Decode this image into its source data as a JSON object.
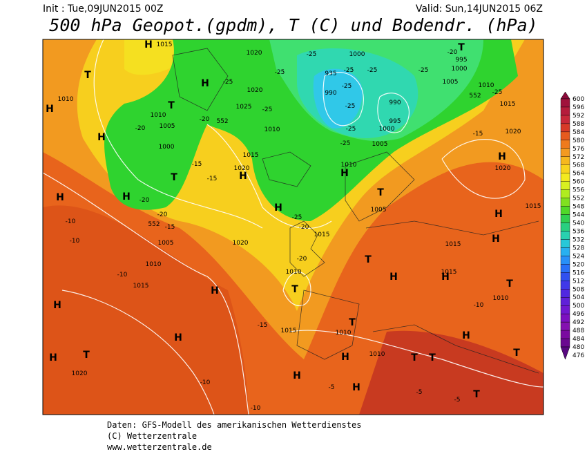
{
  "header": {
    "init": "Init : Tue,09JUN2015 00Z",
    "valid": "Valid: Sun,14JUN2015 06Z",
    "title": "500 hPa Geopot.(gpdm), T (C) und Bodendr. (hPa)"
  },
  "footer": {
    "line1": "Daten: GFS-Modell des amerikanischen Wetterdienstes",
    "line2": "(C) Wetterzentrale",
    "line3": "www.wetterzentrale.de"
  },
  "colorbar": {
    "labels": [
      600,
      596,
      592,
      588,
      584,
      580,
      576,
      572,
      568,
      564,
      560,
      556,
      552,
      548,
      544,
      540,
      536,
      532,
      528,
      524,
      520,
      516,
      512,
      508,
      504,
      500,
      496,
      492,
      488,
      484,
      480,
      476
    ]
  },
  "map": {
    "labels": [
      "H",
      "H",
      "H",
      "H",
      "H",
      "H",
      "H",
      "H",
      "H",
      "H",
      "H",
      "H",
      "H",
      "H",
      "H",
      "H",
      "H",
      "H",
      "H",
      "H",
      "H",
      "H",
      "T",
      "T",
      "T",
      "T",
      "T",
      "T",
      "T",
      "T",
      "T",
      "T",
      "T",
      "T",
      "T",
      "T",
      "1015",
      "1020",
      "1000",
      "995",
      "1000",
      "935",
      "990",
      "990",
      "995",
      "1000",
      "1005",
      "1010",
      "1015",
      "1010",
      "1010",
      "1005",
      "1000",
      "1020",
      "1025",
      "1010",
      "1015",
      "1020",
      "1005",
      "1010",
      "1020",
      "1020",
      "1015",
      "1005",
      "1015",
      "1015",
      "1015",
      "1010",
      "1005",
      "1010",
      "1015",
      "1020",
      "1010",
      "1015",
      "1010",
      "1010",
      "1020",
      "-25",
      "-25",
      "-25",
      "-25",
      "-25",
      "-25",
      "-25",
      "-25",
      "-25",
      "-20",
      "-20",
      "-25",
      "-25",
      "-25",
      "-20",
      "-20",
      "-20",
      "-20",
      "-15",
      "-15",
      "-15",
      "-15",
      "-10",
      "-10",
      "-10",
      "-15",
      "-10",
      "-10",
      "-5",
      "-5",
      "-5",
      "-10",
      "-20",
      "-25",
      "552",
      "552",
      "552"
    ]
  }
}
